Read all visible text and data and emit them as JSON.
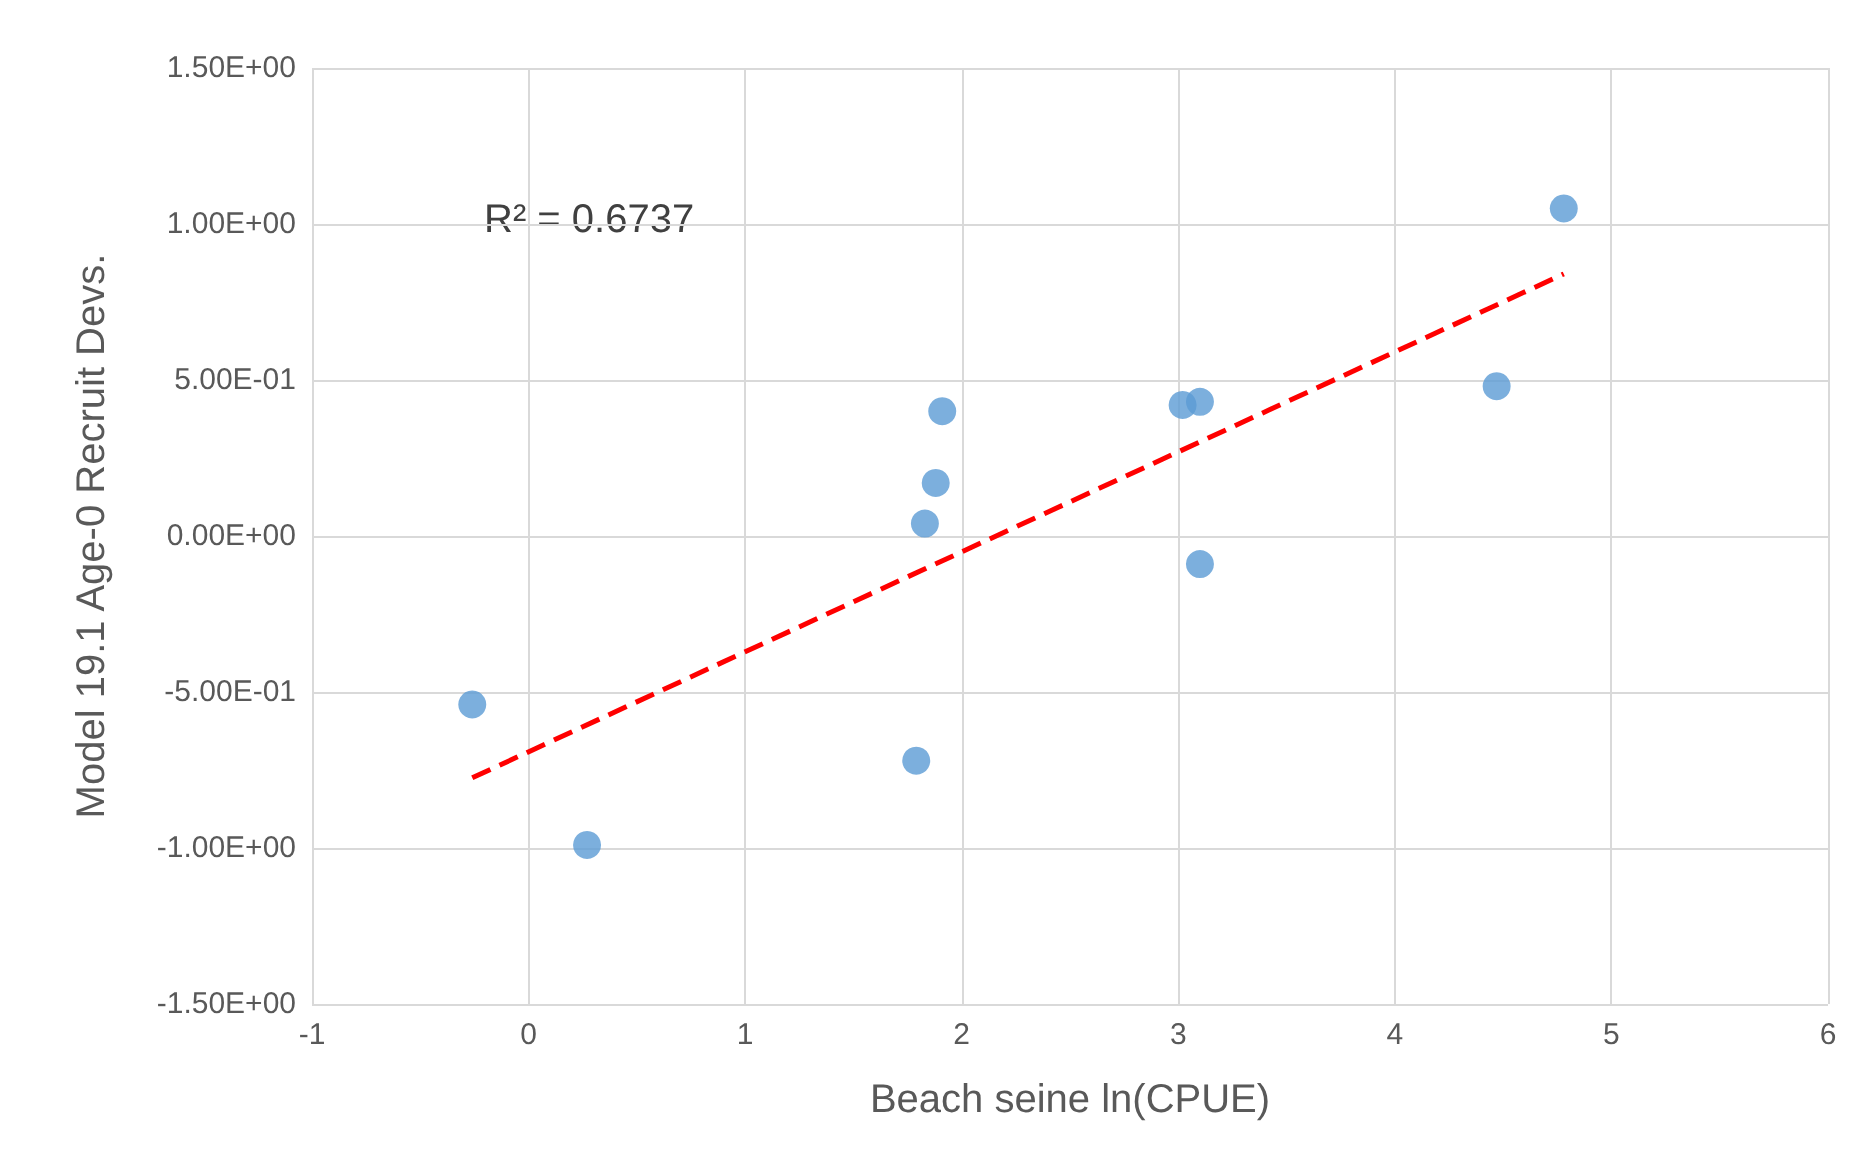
{
  "chart_data": {
    "type": "scatter",
    "xlabel": "Beach seine ln(CPUE)",
    "ylabel": "Model 19.1 Age-0 Recruit Devs.",
    "annotations": [
      "R² = 0.6737"
    ],
    "xlim": [
      -1,
      6
    ],
    "xticks": [
      -1,
      0,
      1,
      2,
      3,
      4,
      5,
      6
    ],
    "ylim": [
      -1.5,
      1.5
    ],
    "yticks": [
      {
        "value": -1.5,
        "label": "-1.50E+00"
      },
      {
        "value": -1,
        "label": "-1.00E+00"
      },
      {
        "value": -0.5,
        "label": "-5.00E-01"
      },
      {
        "value": 0,
        "label": "0.00E+00"
      },
      {
        "value": 0.5,
        "label": "5.00E-01"
      },
      {
        "value": 1,
        "label": "1.00E+00"
      },
      {
        "value": 1.5,
        "label": "1.50E+00"
      }
    ],
    "grid": true,
    "marker": "circle",
    "series": [
      {
        "color": "#5b9bd5",
        "x": [
          -0.26,
          0.27,
          1.79,
          1.83,
          1.88,
          1.91,
          3.02,
          3.1,
          3.1,
          4.47,
          4.78
        ],
        "values": [
          -0.54,
          -0.99,
          -0.72,
          0.04,
          0.17,
          0.4,
          0.42,
          0.43,
          -0.09,
          0.48,
          1.05
        ]
      },
      {
        "type": "line",
        "color": "#ff0000",
        "line_style": "dashed",
        "marker": "none",
        "x": [
          -0.26,
          4.78
        ],
        "values": [
          -0.775,
          0.84
        ]
      }
    ]
  }
}
